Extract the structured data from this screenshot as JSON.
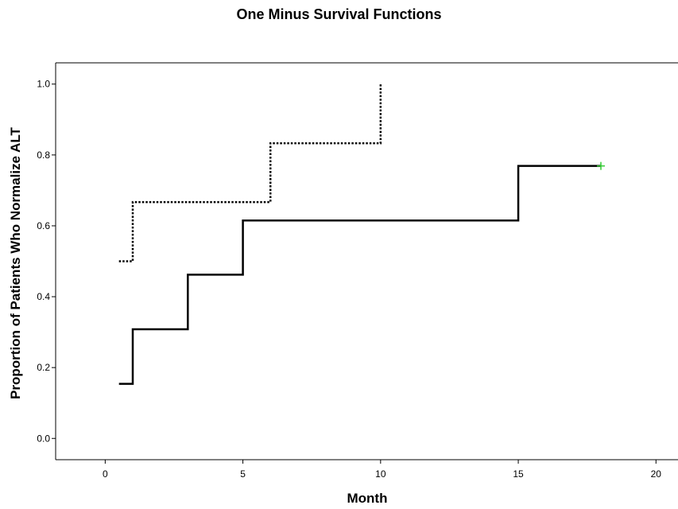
{
  "chart_data": {
    "type": "line",
    "title": "One Minus Survival Functions",
    "xlabel": "Month",
    "ylabel": "Proportion of Patients Who Normalize ALT",
    "xlim": [
      -1.8,
      20.8
    ],
    "ylim": [
      -0.06,
      1.06
    ],
    "x_ticks": [
      "0",
      "5",
      "10",
      "15",
      "20"
    ],
    "x_tick_values": [
      0,
      5,
      10,
      15,
      20
    ],
    "y_ticks": [
      "0.0",
      "0.2",
      "0.4",
      "0.6",
      "0.8",
      "1.0"
    ],
    "y_tick_values": [
      0,
      0.2,
      0.4,
      0.6,
      0.8,
      1.0
    ],
    "grid": false,
    "series": [
      {
        "style": "solid",
        "color": "#000000",
        "steps": [
          [
            0.5,
            0.154
          ],
          [
            1,
            0.308
          ],
          [
            3,
            0.462
          ],
          [
            5,
            0.615
          ],
          [
            15,
            0.769
          ],
          [
            18,
            0.769
          ]
        ],
        "censored": [
          [
            18,
            0.769
          ]
        ],
        "censor_color": "#33cc33"
      },
      {
        "style": "dotted",
        "color": "#000000",
        "steps": [
          [
            0.5,
            0.5
          ],
          [
            1,
            0.667
          ],
          [
            6,
            0.833
          ],
          [
            10,
            1.0
          ]
        ],
        "censored": []
      }
    ]
  }
}
